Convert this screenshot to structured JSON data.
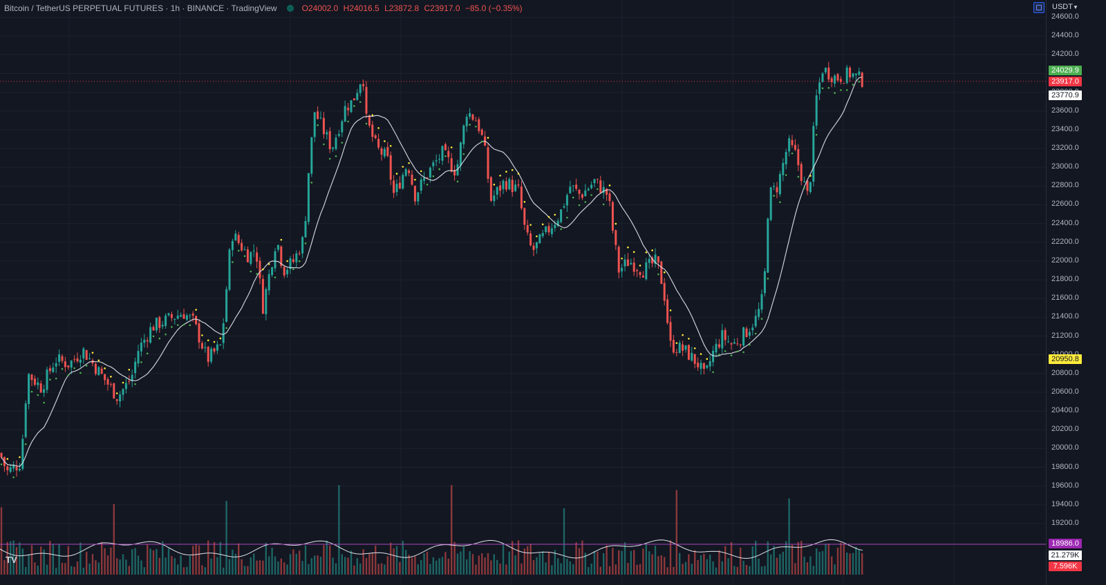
{
  "header": {
    "symbol_title": "Bitcoin / TetherUS PERPETUAL FUTURES · 1h · BINANCE · TradingView",
    "ohlc": {
      "open_key": "O",
      "open": "24002.0",
      "high_key": "H",
      "high": "24016.5",
      "low_key": "L",
      "low": "23872.8",
      "close_key": "C",
      "close": "23917.0",
      "change": "−85.0 (−0.35%)"
    }
  },
  "currency_selector": "USDT",
  "branding": {
    "logo": "TV"
  },
  "colors": {
    "background": "#131722",
    "up": "#26a69a",
    "down": "#ef5350",
    "psar_up": "#4caf50",
    "psar_down": "#ffeb3b",
    "ma": "#e0e3eb",
    "volume_line": "#ab47bc"
  },
  "price_axis": {
    "tick_labels": [
      "24600.0",
      "24400.0",
      "24200.0",
      "24000.0",
      "23800.0",
      "23600.0",
      "23400.0",
      "23200.0",
      "23000.0",
      "22800.0",
      "22600.0",
      "22400.0",
      "22200.0",
      "22000.0",
      "21800.0",
      "21600.0",
      "21400.0",
      "21200.0",
      "21000.0",
      "20800.0",
      "20600.0",
      "20400.0",
      "20200.0",
      "20000.0",
      "19800.0",
      "19600.0",
      "19400.0",
      "19200.0"
    ]
  },
  "price_tags": [
    {
      "label": "24029.9",
      "bg": "#4caf50",
      "fg": "#ffffff",
      "price": 24029.9
    },
    {
      "label": "23917.0",
      "bg": "#f23645",
      "fg": "#ffffff",
      "price": 23917.0
    },
    {
      "label": "23770.9",
      "bg": "#ffffff",
      "fg": "#131722",
      "price": 23770.9
    },
    {
      "label": "20950.8",
      "bg": "#ffeb3b",
      "fg": "#131722",
      "price": 20950.8
    },
    {
      "label": "18986.0",
      "bg": "#9c27b0",
      "fg": "#ffffff",
      "price": 18986.0
    },
    {
      "label": "21.279K",
      "bg": "#ffffff",
      "fg": "#131722",
      "price": 18920
    },
    {
      "label": "7.596K",
      "bg": "#f23645",
      "fg": "#ffffff",
      "price": 18860
    }
  ],
  "chart_data": {
    "type": "candlestick",
    "y_axis": {
      "min": 18800,
      "max": 24700,
      "unit": "USDT"
    },
    "current_price": 23917.0,
    "volume_reference_price": 18986.0,
    "close_path": [
      [
        0,
        19950
      ],
      [
        10,
        19750
      ],
      [
        30,
        19850
      ],
      [
        40,
        20800
      ],
      [
        60,
        20650
      ],
      [
        80,
        20950
      ],
      [
        100,
        20900
      ],
      [
        120,
        21050
      ],
      [
        140,
        20850
      ],
      [
        170,
        20550
      ],
      [
        190,
        20750
      ],
      [
        200,
        21050
      ],
      [
        220,
        21300
      ],
      [
        250,
        21400
      ],
      [
        265,
        21450
      ],
      [
        280,
        21350
      ],
      [
        300,
        20950
      ],
      [
        320,
        21100
      ],
      [
        335,
        22300
      ],
      [
        360,
        22050
      ],
      [
        370,
        22150
      ],
      [
        380,
        21500
      ],
      [
        400,
        22250
      ],
      [
        410,
        21900
      ],
      [
        425,
        22000
      ],
      [
        440,
        22250
      ],
      [
        445,
        22850
      ],
      [
        455,
        23600
      ],
      [
        480,
        23200
      ],
      [
        500,
        23650
      ],
      [
        510,
        23700
      ],
      [
        525,
        24000
      ],
      [
        530,
        23500
      ],
      [
        545,
        23200
      ],
      [
        560,
        23100
      ],
      [
        570,
        22700
      ],
      [
        590,
        23050
      ],
      [
        600,
        22700
      ],
      [
        620,
        22950
      ],
      [
        640,
        23150
      ],
      [
        660,
        22950
      ],
      [
        675,
        23600
      ],
      [
        690,
        23500
      ],
      [
        700,
        23250
      ],
      [
        710,
        22650
      ],
      [
        730,
        22850
      ],
      [
        750,
        22750
      ],
      [
        760,
        22300
      ],
      [
        770,
        22100
      ],
      [
        790,
        22300
      ],
      [
        810,
        22500
      ],
      [
        825,
        22800
      ],
      [
        840,
        22700
      ],
      [
        860,
        22850
      ],
      [
        880,
        22700
      ],
      [
        885,
        22400
      ],
      [
        895,
        21900
      ],
      [
        910,
        22000
      ],
      [
        930,
        21900
      ],
      [
        950,
        22000
      ],
      [
        960,
        21700
      ],
      [
        970,
        21100
      ],
      [
        990,
        21050
      ],
      [
        1010,
        20900
      ],
      [
        1020,
        20750
      ],
      [
        1030,
        21000
      ],
      [
        1045,
        21200
      ],
      [
        1060,
        21100
      ],
      [
        1080,
        21250
      ],
      [
        1095,
        21400
      ],
      [
        1105,
        21650
      ],
      [
        1112,
        22700
      ],
      [
        1125,
        22800
      ],
      [
        1140,
        23250
      ],
      [
        1150,
        23150
      ],
      [
        1170,
        22650
      ],
      [
        1180,
        23700
      ],
      [
        1190,
        24050
      ],
      [
        1210,
        23950
      ],
      [
        1230,
        24000
      ],
      [
        1250,
        23917
      ]
    ]
  }
}
